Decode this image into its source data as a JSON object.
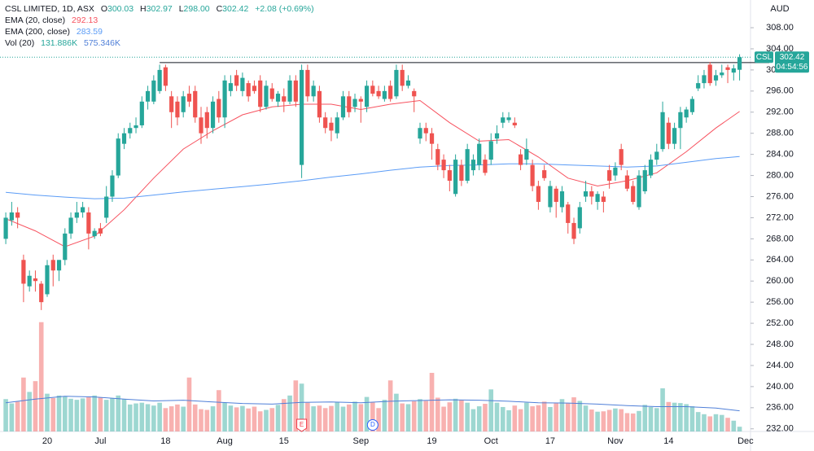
{
  "chart_data": {
    "type": "candlestick",
    "title": "CSL LIMITED, 1D, ASX",
    "legend_ohlc": [
      {
        "label": "O",
        "value": "300.03"
      },
      {
        "label": "H",
        "value": "302.97"
      },
      {
        "label": "L",
        "value": "298.00"
      },
      {
        "label": "C",
        "value": "302.42"
      }
    ],
    "change": "+2.08 (+0.69%)",
    "currency": "AUD",
    "symbol_badge": "CSL",
    "countdown": "04:54:56",
    "up_color": "#26a69a",
    "down_color": "#ef5350",
    "categories": [
      null,
      null,
      null,
      null,
      null,
      null,
      null,
      "20",
      null,
      null,
      null,
      null,
      null,
      null,
      null,
      null,
      "Jul",
      null,
      null,
      null,
      null,
      null,
      null,
      null,
      null,
      null,
      null,
      "18",
      null,
      null,
      null,
      null,
      null,
      null,
      null,
      null,
      null,
      "Aug",
      null,
      null,
      null,
      null,
      null,
      null,
      null,
      null,
      null,
      "15",
      null,
      null,
      null,
      null,
      null,
      null,
      null,
      null,
      null,
      null,
      null,
      null,
      "Sep",
      null,
      null,
      null,
      null,
      null,
      null,
      null,
      null,
      null,
      null,
      null,
      "19",
      null,
      null,
      null,
      null,
      null,
      null,
      null,
      null,
      null,
      "Oct",
      null,
      null,
      null,
      null,
      null,
      null,
      null,
      null,
      null,
      "17",
      null,
      null,
      null,
      null,
      null,
      null,
      null,
      null,
      null,
      null,
      "Nov",
      null,
      null,
      null,
      null,
      null,
      null,
      null,
      null,
      "14",
      null,
      null,
      null,
      null,
      null,
      null,
      null,
      null,
      null,
      null,
      null,
      null,
      "Dec"
    ],
    "open": [
      268,
      271.5,
      273,
      264,
      259,
      260.5,
      259.5,
      257.5,
      264,
      262,
      264,
      269,
      272,
      273,
      273,
      268.5,
      270,
      272,
      276,
      280,
      286,
      288,
      289,
      289.5,
      294,
      294,
      296,
      300.5,
      295,
      294,
      292,
      295.5,
      296,
      291,
      292,
      289,
      294.5,
      291,
      296,
      299,
      296,
      297.5,
      297,
      298,
      293,
      296.5,
      294,
      295,
      294,
      298,
      282,
      300,
      295,
      296,
      291,
      290,
      288,
      291,
      295,
      293,
      294.5,
      293,
      297,
      296,
      294.5,
      297,
      295,
      300,
      297,
      296,
      287,
      289,
      288,
      285,
      283,
      281,
      276.5,
      282,
      279,
      281,
      282,
      283,
      283,
      287,
      290,
      290.5,
      290,
      284,
      283,
      282,
      278,
      281,
      274,
      277.5,
      274,
      274.5,
      271,
      270,
      276,
      277,
      275,
      276,
      281,
      280,
      285,
      280,
      278,
      274,
      277,
      280,
      283,
      285,
      290,
      286,
      289,
      291,
      292,
      296.5,
      297.5,
      301,
      298,
      299,
      300.5,
      299.5,
      300.03,
      null
    ],
    "high": [
      273,
      275,
      274,
      265,
      262,
      262,
      260,
      264,
      265,
      264,
      270,
      273,
      275,
      275,
      274,
      270,
      271,
      278,
      281,
      288,
      289,
      290,
      291,
      295,
      297,
      299,
      301,
      301,
      296,
      295,
      296,
      297,
      297,
      293,
      293,
      295,
      296,
      299,
      299,
      300,
      299.5,
      298,
      298,
      299,
      298,
      297.5,
      296,
      296.5,
      299,
      299,
      301,
      301,
      298,
      297,
      292,
      291,
      292,
      296,
      296,
      295.5,
      295,
      298,
      298,
      297,
      297,
      298,
      301,
      301,
      299,
      296.5,
      290,
      290,
      289,
      286,
      284,
      282,
      284,
      283,
      286,
      284,
      287,
      284,
      288,
      289.5,
      292,
      292,
      291,
      285,
      287,
      283,
      279,
      282,
      279,
      278,
      278,
      275,
      272,
      275,
      279,
      278,
      277,
      277,
      282,
      282.5,
      286,
      281,
      279,
      281,
      282,
      284,
      286,
      294,
      291,
      290,
      293,
      293,
      295,
      299,
      300,
      301.5,
      300,
      301,
      301,
      301,
      302.97,
      null
    ],
    "low": [
      267,
      270.5,
      270,
      256,
      258,
      258,
      254.5,
      257,
      259,
      260,
      263,
      268,
      271,
      272,
      266,
      268,
      268.5,
      271,
      275,
      279.5,
      285,
      287,
      288,
      289,
      292.5,
      293.5,
      295.5,
      296,
      289,
      289.5,
      291,
      293,
      290,
      286,
      287,
      288,
      290,
      289,
      295,
      296,
      295,
      294,
      295.5,
      292,
      292.5,
      294,
      293,
      292,
      293.5,
      293,
      279.5,
      294,
      294,
      290,
      288,
      286.5,
      287,
      290.5,
      291,
      292,
      290,
      292,
      295,
      294.5,
      294,
      294,
      294.5,
      296,
      296.5,
      292,
      286,
      286.5,
      283,
      281,
      279.5,
      277,
      276,
      278,
      278.5,
      280,
      281,
      280,
      282,
      286,
      289,
      290,
      289,
      281,
      282,
      277,
      273.5,
      279,
      273,
      272,
      273,
      269,
      267,
      269,
      275,
      274.5,
      273.5,
      273,
      277.5,
      279,
      281,
      277,
      274.5,
      273.5,
      276.5,
      279.5,
      282,
      284.5,
      285,
      285,
      285,
      290,
      291.5,
      296,
      296.5,
      297,
      297,
      298.5,
      297.5,
      298,
      298,
      null
    ],
    "close": [
      272,
      273,
      272,
      259.5,
      261,
      260,
      256,
      263,
      262,
      264,
      269,
      272,
      273,
      274,
      269,
      269.5,
      269,
      276,
      280,
      287,
      288,
      289,
      289.5,
      294,
      296,
      298,
      300,
      297,
      292,
      291,
      295,
      294,
      291,
      288,
      289,
      294,
      291,
      298,
      297.5,
      297,
      298.5,
      295,
      296,
      293,
      297,
      294.5,
      295.5,
      294,
      298,
      294,
      300,
      295,
      297,
      291,
      289,
      288.5,
      291,
      295,
      292,
      294.5,
      294,
      297,
      295.5,
      295,
      296,
      294.5,
      300,
      297,
      298,
      295,
      289,
      288,
      286,
      282,
      281,
      279,
      283,
      279,
      285,
      283,
      286,
      280.5,
      286.5,
      288,
      291,
      291,
      289.5,
      282,
      285,
      278,
      275,
      279.5,
      278,
      275,
      277,
      271,
      268,
      274,
      277,
      276,
      276.5,
      275,
      279,
      281.5,
      282,
      277.5,
      275,
      280,
      281,
      283,
      284.5,
      292,
      286,
      289,
      292,
      292.5,
      294.5,
      297.5,
      299,
      297.5,
      299,
      299.5,
      300,
      300.3,
      302.42,
      null
    ],
    "ylim": [
      231.5,
      313.25
    ],
    "yticks": [
      {
        "value": 232,
        "label": "232.00"
      },
      {
        "value": 236,
        "label": "236.00"
      },
      {
        "value": 240,
        "label": "240.00"
      },
      {
        "value": 244,
        "label": "244.00"
      },
      {
        "value": 248,
        "label": "248.00"
      },
      {
        "value": 252,
        "label": "252.00"
      },
      {
        "value": 256,
        "label": "256.00"
      },
      {
        "value": 260,
        "label": "260.00"
      },
      {
        "value": 264,
        "label": "264.00"
      },
      {
        "value": 268,
        "label": "268.00"
      },
      {
        "value": 272,
        "label": "272.00"
      },
      {
        "value": 276,
        "label": "276.00"
      },
      {
        "value": 280,
        "label": "280.00"
      },
      {
        "value": 284,
        "label": "284.00"
      },
      {
        "value": 288,
        "label": "288.00"
      },
      {
        "value": 292,
        "label": "292.00"
      },
      {
        "value": 296,
        "label": "296.00"
      },
      {
        "value": 300,
        "label": "300.00"
      },
      {
        "value": 304,
        "label": "304.00"
      },
      {
        "value": 308,
        "label": "308.00"
      }
    ],
    "hline": 301.4,
    "series": [
      {
        "name": "EMA (20, close)",
        "color": "#f7525f",
        "x": [
          0,
          5,
          10,
          15,
          20,
          25,
          30,
          35,
          40,
          45,
          50,
          55,
          60,
          65,
          70,
          75,
          80,
          85,
          90,
          95,
          100,
          105,
          110,
          115,
          120,
          124
        ],
        "values": [
          271.8,
          269.5,
          266.5,
          268.5,
          273.5,
          279.5,
          285,
          288.5,
          291.5,
          293,
          293.5,
          293.5,
          292.5,
          293.5,
          294.2,
          290,
          286.5,
          286.8,
          283.5,
          279.5,
          278,
          279,
          280.5,
          284.5,
          289,
          292.13
        ]
      },
      {
        "name": "EMA (200, close)",
        "color": "#5b9cf6",
        "x": [
          0,
          5,
          10,
          15,
          20,
          25,
          30,
          35,
          40,
          45,
          50,
          55,
          60,
          65,
          70,
          75,
          80,
          85,
          90,
          95,
          100,
          105,
          110,
          115,
          120,
          124
        ],
        "values": [
          276.8,
          276.3,
          275.9,
          275.6,
          275.7,
          276.3,
          276.9,
          277.4,
          277.9,
          278.4,
          279,
          279.7,
          280.3,
          281,
          281.6,
          281.9,
          282,
          282.2,
          282.2,
          282,
          281.8,
          281.6,
          281.8,
          282.5,
          283.2,
          283.59
        ]
      }
    ],
    "volume": {
      "name": "Vol (20)",
      "value_label": "131.886K",
      "ma_label": "575.346K",
      "ma_color": "#4f7fd8",
      "values": [
        900000,
        780000,
        830000,
        1500000,
        1100000,
        1400000,
        3040000,
        1050000,
        930000,
        1000000,
        980000,
        910000,
        880000,
        920000,
        950000,
        1000000,
        940000,
        880000,
        930000,
        1000000,
        900000,
        750000,
        780000,
        800000,
        760000,
        720000,
        800000,
        650000,
        700000,
        750000,
        690000,
        1500000,
        750000,
        620000,
        600000,
        700000,
        1150000,
        800000,
        720000,
        670000,
        710000,
        640000,
        690000,
        560000,
        600000,
        650000,
        740000,
        900000,
        1000000,
        1420000,
        1330000,
        800000,
        700000,
        720000,
        650000,
        710000,
        820000,
        690000,
        750000,
        830000,
        760000,
        960000,
        810000,
        650000,
        880000,
        1420000,
        1050000,
        780000,
        760000,
        840000,
        900000,
        850000,
        1630000,
        940000,
        690000,
        810000,
        910000,
        870000,
        800000,
        620000,
        700000,
        770000,
        1170000,
        800000,
        680000,
        590000,
        720000,
        620000,
        800000,
        700000,
        730000,
        830000,
        680000,
        780000,
        900000,
        780000,
        950000,
        850000,
        720000,
        610000,
        550000,
        560000,
        600000,
        640000,
        620000,
        510000,
        500000,
        570000,
        740000,
        680000,
        650000,
        1200000,
        820000,
        800000,
        790000,
        760000,
        700000,
        540000,
        480000,
        420000,
        480000,
        460000,
        380000,
        300000,
        131886,
        null
      ],
      "ma_x": [
        0,
        5,
        10,
        15,
        20,
        25,
        30,
        35,
        40,
        45,
        50,
        55,
        60,
        65,
        70,
        75,
        80,
        85,
        90,
        95,
        100,
        105,
        110,
        115,
        120,
        124
      ],
      "ma_values": [
        800000,
        900000,
        980000,
        960000,
        900000,
        850000,
        870000,
        820000,
        780000,
        760000,
        810000,
        820000,
        800000,
        840000,
        860000,
        880000,
        870000,
        840000,
        800000,
        790000,
        760000,
        720000,
        690000,
        690000,
        650000,
        575346
      ]
    },
    "y2lim": [
      0,
      12000000
    ],
    "events": [
      {
        "label": "E",
        "x": 50,
        "color": "#f23645"
      },
      {
        "label": "D",
        "x": 62,
        "color": "#2962ff"
      }
    ]
  }
}
